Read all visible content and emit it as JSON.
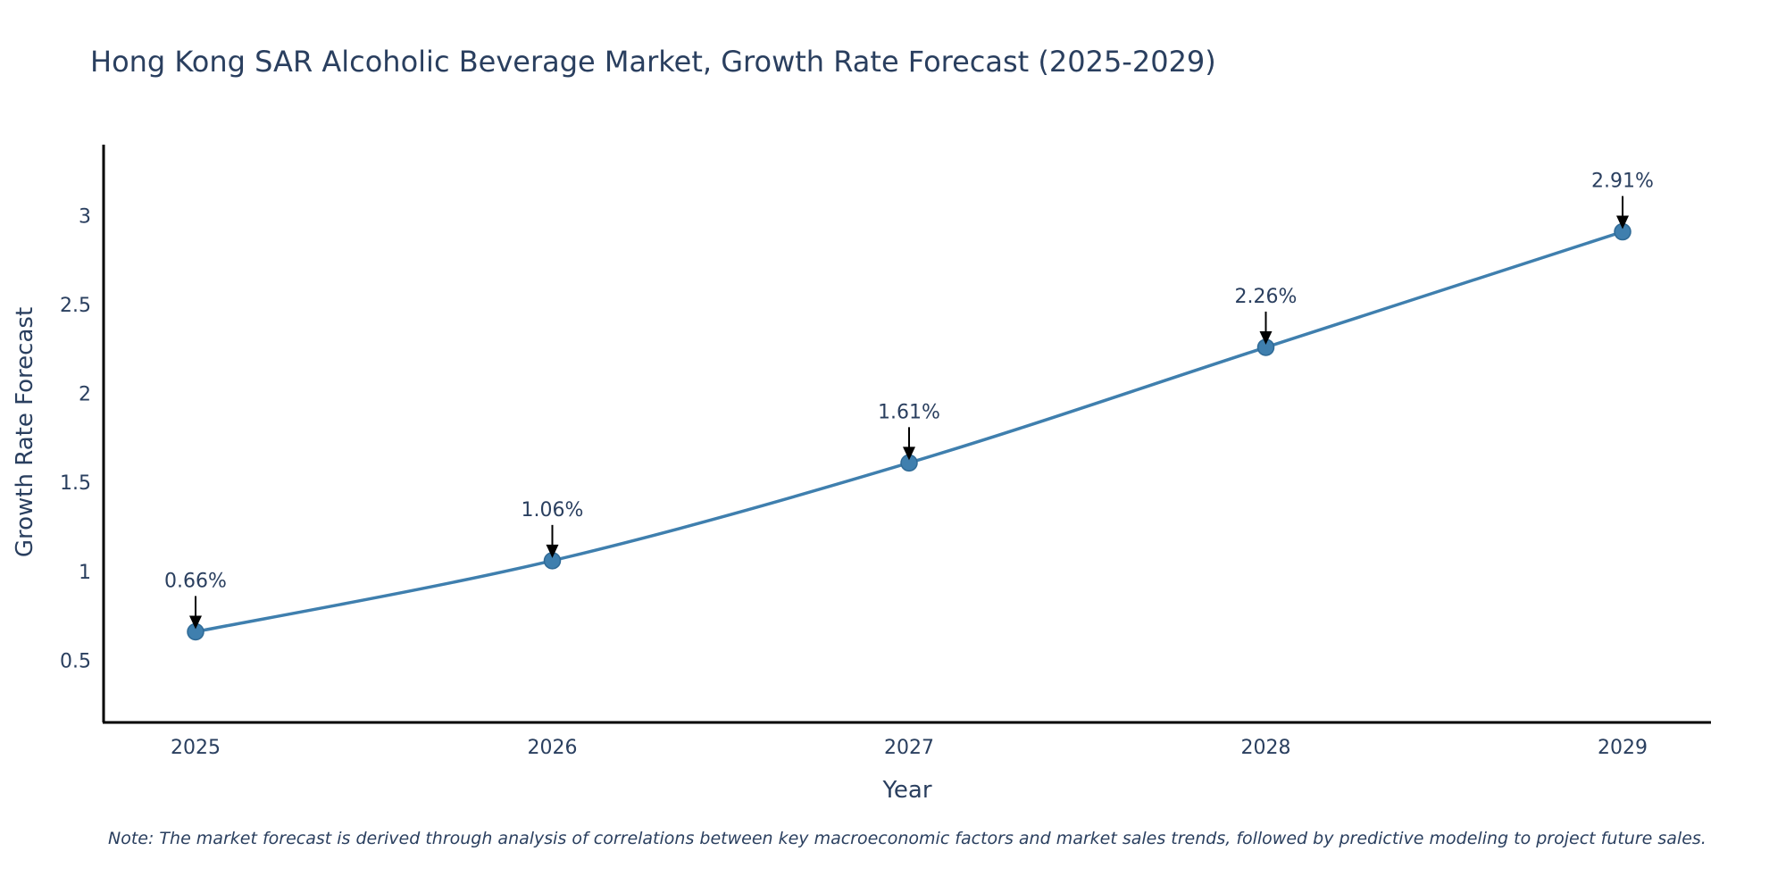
{
  "chart_data": {
    "type": "line",
    "title": "Hong Kong SAR Alcoholic Beverage Market, Growth Rate Forecast (2025-2029)",
    "xlabel": "Year",
    "ylabel": "Growth Rate Forecast",
    "categories": [
      "2025",
      "2026",
      "2027",
      "2028",
      "2029"
    ],
    "values": [
      0.66,
      1.06,
      1.61,
      2.26,
      2.91
    ],
    "data_labels": [
      "0.66%",
      "1.06%",
      "1.61%",
      "2.26%",
      "2.91%"
    ],
    "ylim": [
      0.15,
      3.4
    ],
    "yticks": [
      0.5,
      1,
      1.5,
      2,
      2.5,
      3
    ],
    "ytick_labels": [
      "0.5",
      "1",
      "1.5",
      "2",
      "2.5",
      "3"
    ],
    "grid": false,
    "line_shape": "spline",
    "note": "Note: The market forecast is derived through analysis of correlations between key macroeconomic factors and market sales trends, followed by predictive modeling to project future sales."
  },
  "colors": {
    "series": "#3f7fae",
    "text": "#2a3f5f",
    "axis": "#000000"
  }
}
